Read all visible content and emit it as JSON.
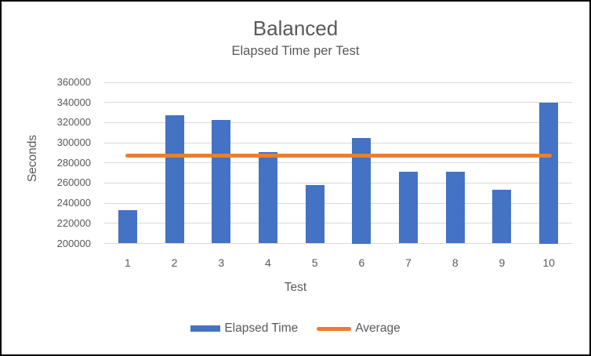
{
  "chart_data": {
    "type": "bar",
    "title": "Balanced",
    "subtitle": "Elapsed Time per Test",
    "xlabel": "Test",
    "ylabel": "Seconds",
    "categories": [
      "1",
      "2",
      "3",
      "4",
      "5",
      "6",
      "7",
      "8",
      "9",
      "10"
    ],
    "series": [
      {
        "name": "Elapsed Time",
        "type": "bar",
        "color": "#4472C4",
        "values": [
          233000,
          327000,
          323000,
          291000,
          258000,
          305000,
          271000,
          271000,
          253000,
          340000
        ]
      },
      {
        "name": "Average",
        "type": "line",
        "color": "#ED7D31",
        "value": 287200
      }
    ],
    "ylim": [
      200000,
      360000
    ],
    "ytick_step": 20000,
    "grid": true,
    "gridline_color": "#D9D9D9",
    "text_color": "#595959",
    "legend_position": "bottom"
  }
}
